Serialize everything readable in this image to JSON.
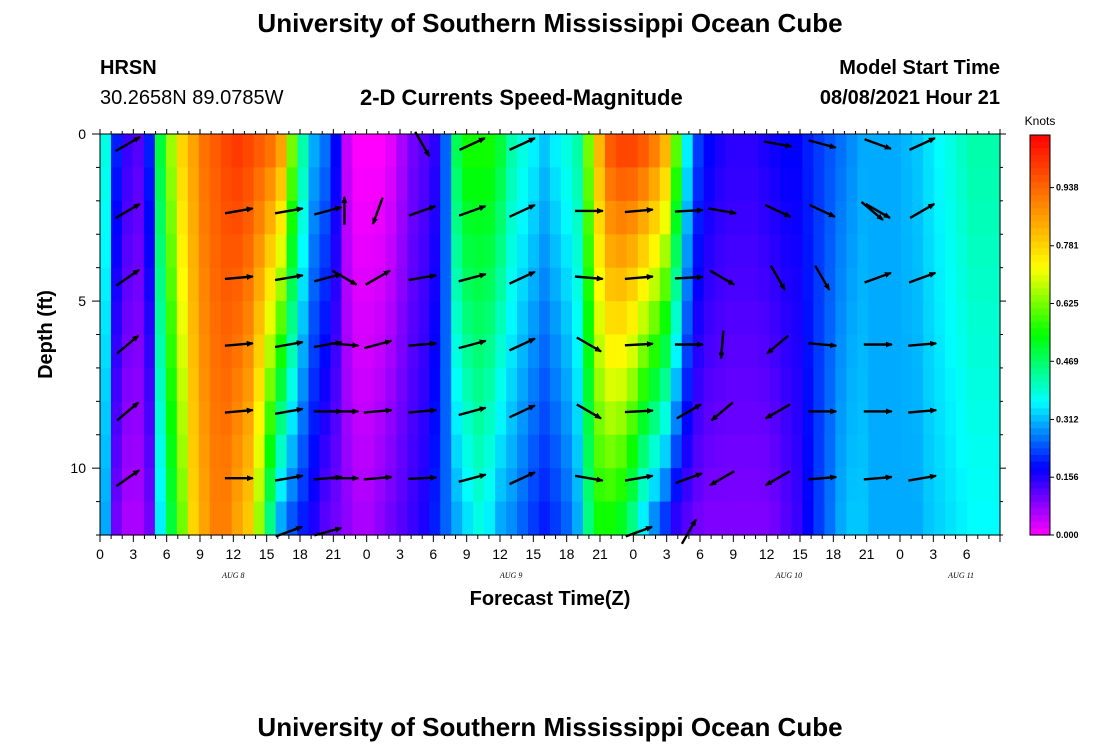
{
  "page": {
    "title_top": "University of Southern Mississippi Ocean Cube",
    "title_bottom": "University of Southern Mississippi Ocean Cube",
    "station_name": "HRSN",
    "station_coords": "30.2658N  89.0785W",
    "plot_title": "2-D Currents Speed-Magnitude",
    "model_label": "Model Start Time",
    "model_time": "08/08/2021 Hour 21"
  },
  "colors": {
    "ramp": [
      "#ff00ff",
      "#0000ff",
      "#00ffff",
      "#00ff00",
      "#ffff00",
      "#ff8000",
      "#ff0000"
    ],
    "arrow": "#000000"
  },
  "chart_data": {
    "type": "heatmap",
    "title": "2-D Currents Speed-Magnitude",
    "xlabel": "Forecast Time(Z)",
    "ylabel": "Depth (ft)",
    "colorbar_unit": "Knots",
    "colorbar_ticks": [
      "0.000",
      "0.156",
      "0.312",
      "0.469",
      "0.625",
      "0.781",
      "0.938"
    ],
    "colorbar_range": [
      0,
      1.08
    ],
    "x_range_hours": [
      0,
      81
    ],
    "x_tick_labels": [
      "0",
      "3",
      "6",
      "9",
      "12",
      "15",
      "18",
      "21",
      "0",
      "3",
      "6",
      "9",
      "12",
      "15",
      "18",
      "21",
      "0",
      "3",
      "6",
      "9",
      "12",
      "15",
      "18",
      "21",
      "0",
      "3",
      "6"
    ],
    "y_range_ft": [
      0,
      12
    ],
    "y_tick_labels": [
      {
        "value": 0,
        "label": "0"
      },
      {
        "value": 5,
        "label": "5"
      },
      {
        "value": 10,
        "label": "10"
      }
    ],
    "date_labels": [
      {
        "hour": 12,
        "label": "AUG 8"
      },
      {
        "hour": 37,
        "label": "AUG 9"
      },
      {
        "hour": 62,
        "label": "AUG 10"
      },
      {
        "hour": 77.5,
        "label": "AUG 11"
      }
    ],
    "speed_profile": {
      "hours": [
        0,
        1,
        2,
        3,
        4,
        5,
        6,
        7,
        8,
        9,
        10,
        11,
        12,
        13,
        14,
        15,
        16,
        17,
        18,
        19,
        20,
        21,
        22,
        23,
        24,
        25,
        26,
        27,
        28,
        29,
        30,
        31,
        32,
        33,
        34,
        35,
        36,
        37,
        38,
        39,
        40,
        41,
        42,
        43,
        44,
        45,
        46,
        47,
        48,
        49,
        50,
        51,
        52,
        53,
        54,
        55,
        56,
        57,
        58,
        59,
        60,
        61,
        62,
        63,
        64,
        65,
        66,
        67,
        68,
        69,
        70,
        71,
        72,
        73,
        74,
        75,
        76,
        77,
        78,
        79,
        80,
        81
      ],
      "surface": [
        0.38,
        0.2,
        0.14,
        0.12,
        0.2,
        0.5,
        0.65,
        0.78,
        0.85,
        0.92,
        0.95,
        0.98,
        1.0,
        0.98,
        0.95,
        0.92,
        0.85,
        0.62,
        0.42,
        0.3,
        0.26,
        0.18,
        0.04,
        0.0,
        0.0,
        0.0,
        0.02,
        0.06,
        0.1,
        0.12,
        0.15,
        0.25,
        0.48,
        0.55,
        0.55,
        0.55,
        0.5,
        0.42,
        0.38,
        0.35,
        0.32,
        0.35,
        0.38,
        0.42,
        0.62,
        0.82,
        0.95,
        0.98,
        0.98,
        0.95,
        0.9,
        0.82,
        0.6,
        0.35,
        0.22,
        0.18,
        0.16,
        0.15,
        0.15,
        0.15,
        0.16,
        0.17,
        0.18,
        0.18,
        0.2,
        0.22,
        0.24,
        0.26,
        0.28,
        0.3,
        0.3,
        0.3,
        0.3,
        0.31,
        0.32,
        0.34,
        0.36,
        0.38,
        0.4,
        0.42,
        0.42,
        0.42
      ],
      "bottom": [
        0.3,
        0.1,
        0.06,
        0.06,
        0.1,
        0.35,
        0.5,
        0.62,
        0.78,
        0.85,
        0.9,
        0.9,
        0.85,
        0.8,
        0.65,
        0.45,
        0.3,
        0.24,
        0.2,
        0.16,
        0.12,
        0.1,
        0.08,
        0.06,
        0.06,
        0.08,
        0.1,
        0.12,
        0.14,
        0.16,
        0.2,
        0.25,
        0.3,
        0.34,
        0.38,
        0.35,
        0.3,
        0.28,
        0.25,
        0.22,
        0.2,
        0.22,
        0.25,
        0.3,
        0.45,
        0.55,
        0.55,
        0.52,
        0.45,
        0.35,
        0.28,
        0.22,
        0.15,
        0.12,
        0.1,
        0.09,
        0.09,
        0.09,
        0.09,
        0.09,
        0.09,
        0.1,
        0.12,
        0.14,
        0.18,
        0.22,
        0.26,
        0.3,
        0.32,
        0.32,
        0.3,
        0.3,
        0.3,
        0.3,
        0.3,
        0.32,
        0.33,
        0.34,
        0.35,
        0.36,
        0.36,
        0.36
      ]
    },
    "arrow_depths_ft": [
      0.3,
      2.3,
      4.3,
      6.3,
      8.3,
      10.3,
      11.9
    ],
    "arrow_columns": [
      {
        "hour": 2.5,
        "dirs": [
          30,
          30,
          35,
          40,
          40,
          35,
          null
        ]
      },
      {
        "hour": 12.5,
        "dirs": [
          null,
          10,
          5,
          5,
          5,
          0,
          null
        ]
      },
      {
        "hour": 17,
        "dirs": [
          null,
          10,
          10,
          10,
          10,
          10,
          20
        ]
      },
      {
        "hour": 20.5,
        "dirs": [
          null,
          15,
          15,
          10,
          0,
          5,
          15
        ]
      },
      {
        "hour": 22,
        "dirs": [
          null,
          90,
          -30,
          -5,
          0,
          0,
          null
        ]
      },
      {
        "hour": 25,
        "dirs": [
          null,
          250,
          30,
          15,
          5,
          5,
          null
        ]
      },
      {
        "hour": 29,
        "dirs": [
          -60,
          20,
          10,
          5,
          5,
          3,
          null
        ]
      },
      {
        "hour": 33.5,
        "dirs": [
          25,
          20,
          15,
          15,
          15,
          15,
          null
        ]
      },
      {
        "hour": 38,
        "dirs": [
          25,
          25,
          25,
          25,
          25,
          25,
          null
        ]
      },
      {
        "hour": 44,
        "dirs": [
          null,
          0,
          -5,
          -30,
          -30,
          -10,
          null
        ]
      },
      {
        "hour": 48.5,
        "dirs": [
          null,
          5,
          5,
          3,
          3,
          10,
          20
        ]
      },
      {
        "hour": 53,
        "dirs": [
          null,
          3,
          3,
          0,
          30,
          20,
          60
        ]
      },
      {
        "hour": 56,
        "dirs": [
          null,
          -10,
          -30,
          265,
          220,
          210,
          null
        ]
      },
      {
        "hour": 61,
        "dirs": [
          -10,
          -25,
          -60,
          220,
          210,
          210,
          null
        ]
      },
      {
        "hour": 65,
        "dirs": [
          -15,
          -25,
          300,
          -5,
          0,
          5,
          null
        ]
      },
      {
        "hour": 70,
        "dirs": [
          -20,
          -30,
          20,
          0,
          0,
          5,
          null
        ]
      },
      {
        "hour": 69.5,
        "dirs": [
          null,
          -40,
          null,
          null,
          null,
          null,
          null
        ]
      },
      {
        "hour": 74,
        "dirs": [
          25,
          30,
          20,
          5,
          5,
          10,
          null
        ]
      }
    ]
  }
}
